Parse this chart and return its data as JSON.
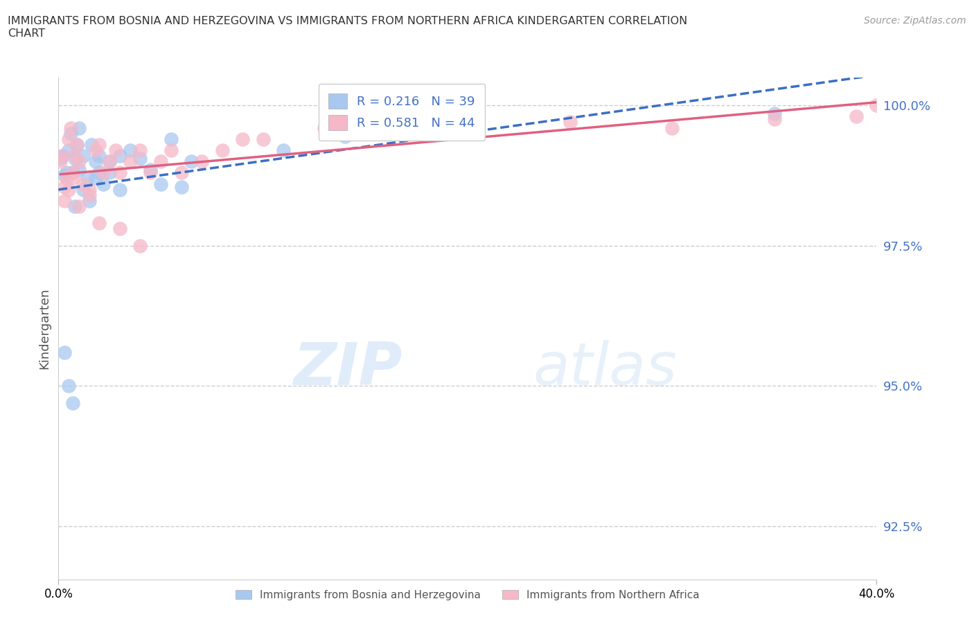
{
  "title": "IMMIGRANTS FROM BOSNIA AND HERZEGOVINA VS IMMIGRANTS FROM NORTHERN AFRICA KINDERGARTEN CORRELATION\nCHART",
  "source_text": "Source: ZipAtlas.com",
  "ylabel": "Kindergarten",
  "xmin": 0.0,
  "xmax": 0.4,
  "ymin": 0.9155,
  "ymax": 1.005,
  "yticks": [
    0.925,
    0.95,
    0.975,
    1.0
  ],
  "ytick_labels": [
    "92.5%",
    "95.0%",
    "97.5%",
    "100.0%"
  ],
  "xtick_labels": [
    "0.0%",
    "40.0%"
  ],
  "xticks": [
    0.0,
    0.4
  ],
  "color_bosnia": "#a8c8f0",
  "color_northern_africa": "#f5b8c8",
  "line_color_bosnia": "#3a6fc4",
  "line_color_northern_africa": "#e06080",
  "R_bosnia": 0.216,
  "N_bosnia": 39,
  "R_northern_africa": 0.581,
  "N_northern_africa": 44,
  "legend_label_bosnia": "Immigrants from Bosnia and Herzegovina",
  "legend_label_northern_africa": "Immigrants from Northern Africa",
  "watermark_ZIP": "ZIP",
  "watermark_atlas": "atlas",
  "bosnia_scatter_x": [
    0.001,
    0.002,
    0.003,
    0.004,
    0.005,
    0.006,
    0.007,
    0.008,
    0.009,
    0.01,
    0.012,
    0.015,
    0.018,
    0.02,
    0.022,
    0.025,
    0.008,
    0.01,
    0.012,
    0.014,
    0.016,
    0.018,
    0.02,
    0.025,
    0.03,
    0.03,
    0.035,
    0.04,
    0.045,
    0.05,
    0.055,
    0.06,
    0.065,
    0.11,
    0.14,
    0.35,
    0.005,
    0.003,
    0.007
  ],
  "bosnia_scatter_y": [
    0.9905,
    0.991,
    0.9875,
    0.988,
    0.992,
    0.995,
    0.988,
    0.9905,
    0.993,
    0.9885,
    0.985,
    0.983,
    0.99,
    0.991,
    0.986,
    0.988,
    0.982,
    0.996,
    0.991,
    0.987,
    0.993,
    0.987,
    0.988,
    0.99,
    0.991,
    0.985,
    0.992,
    0.9905,
    0.9885,
    0.986,
    0.994,
    0.9855,
    0.99,
    0.992,
    0.9945,
    0.9985,
    0.95,
    0.956,
    0.947
  ],
  "northern_africa_scatter_x": [
    0.001,
    0.002,
    0.003,
    0.004,
    0.005,
    0.006,
    0.007,
    0.008,
    0.009,
    0.01,
    0.012,
    0.015,
    0.018,
    0.02,
    0.022,
    0.025,
    0.028,
    0.03,
    0.035,
    0.04,
    0.045,
    0.05,
    0.055,
    0.06,
    0.07,
    0.08,
    0.09,
    0.1,
    0.13,
    0.16,
    0.2,
    0.25,
    0.3,
    0.35,
    0.39,
    0.003,
    0.005,
    0.007,
    0.01,
    0.015,
    0.02,
    0.03,
    0.04,
    0.4
  ],
  "northern_africa_scatter_y": [
    0.99,
    0.991,
    0.9855,
    0.987,
    0.994,
    0.996,
    0.988,
    0.991,
    0.993,
    0.99,
    0.986,
    0.985,
    0.992,
    0.993,
    0.988,
    0.99,
    0.992,
    0.988,
    0.99,
    0.992,
    0.988,
    0.99,
    0.992,
    0.988,
    0.99,
    0.992,
    0.994,
    0.994,
    0.996,
    0.997,
    0.996,
    0.997,
    0.996,
    0.9975,
    0.998,
    0.983,
    0.985,
    0.987,
    0.982,
    0.984,
    0.979,
    0.978,
    0.975,
    1.0
  ]
}
